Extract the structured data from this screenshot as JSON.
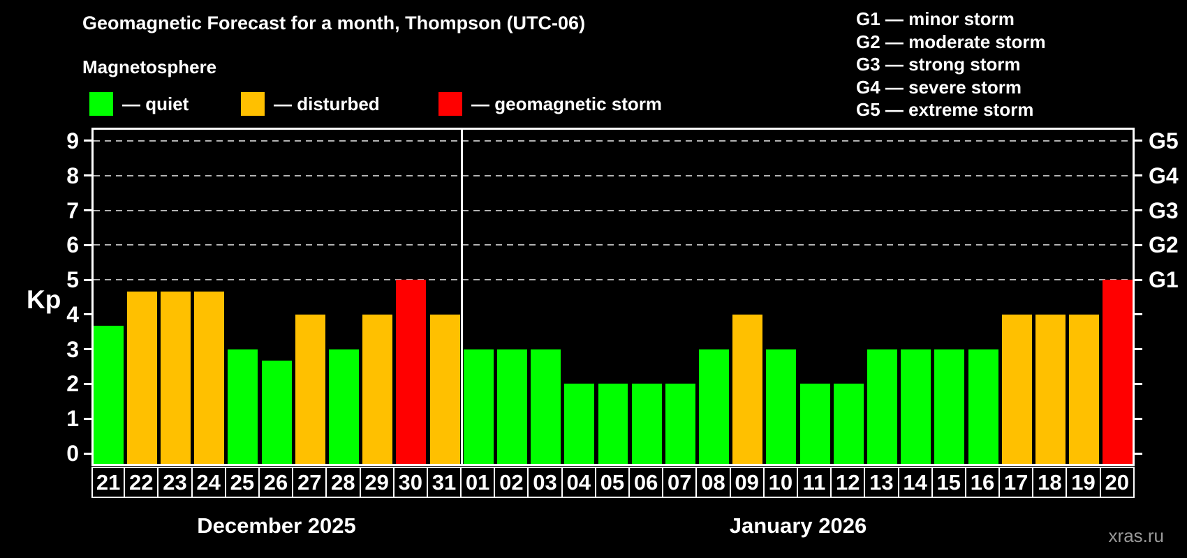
{
  "header": {
    "title": "Geomagnetic Forecast for a month, Thompson (UTC-06)",
    "subtitle": "Magnetosphere"
  },
  "legend": {
    "items": [
      {
        "name": "quiet",
        "label": "— quiet",
        "color": "#00ff00"
      },
      {
        "name": "disturbed",
        "label": "— disturbed",
        "color": "#ffc000"
      },
      {
        "name": "storm",
        "label": "— geomagnetic storm",
        "color": "#ff0000"
      }
    ]
  },
  "storm_legend": {
    "items": [
      {
        "label": "G1 — minor storm"
      },
      {
        "label": "G2 — moderate storm"
      },
      {
        "label": "G3 — strong storm"
      },
      {
        "label": "G4 — severe storm"
      },
      {
        "label": "G5 — extreme storm"
      }
    ]
  },
  "axes": {
    "y_label": "Kp",
    "y_ticks": [
      "0",
      "1",
      "2",
      "3",
      "4",
      "5",
      "6",
      "7",
      "8",
      "9"
    ],
    "g_ticks": [
      {
        "kp": 5,
        "label": "G1"
      },
      {
        "kp": 6,
        "label": "G2"
      },
      {
        "kp": 7,
        "label": "G3"
      },
      {
        "kp": 8,
        "label": "G4"
      },
      {
        "kp": 9,
        "label": "G5"
      }
    ]
  },
  "chart_data": {
    "type": "bar",
    "title": "Geomagnetic Forecast for a month, Thompson (UTC-06)",
    "xlabel": "",
    "ylabel": "Kp",
    "ylim": [
      0,
      9
    ],
    "grid": "dashed horizontal lines at Kp 5-9 (G1-G5)",
    "legend_position": "top-left",
    "categories": [
      "21",
      "22",
      "23",
      "24",
      "25",
      "26",
      "27",
      "28",
      "29",
      "30",
      "31",
      "01",
      "02",
      "03",
      "04",
      "05",
      "06",
      "07",
      "08",
      "09",
      "10",
      "11",
      "12",
      "13",
      "14",
      "15",
      "16",
      "17",
      "18",
      "19",
      "20"
    ],
    "values": [
      3.67,
      4.67,
      4.67,
      4.67,
      3,
      2.67,
      4,
      3,
      4,
      5,
      4,
      3,
      3,
      3,
      2,
      2,
      2,
      2,
      3,
      4,
      3,
      2,
      2,
      3,
      3,
      3,
      3,
      4,
      4,
      4,
      5
    ],
    "statuses": [
      "quiet",
      "disturbed",
      "disturbed",
      "disturbed",
      "quiet",
      "quiet",
      "disturbed",
      "quiet",
      "disturbed",
      "storm",
      "disturbed",
      "quiet",
      "quiet",
      "quiet",
      "quiet",
      "quiet",
      "quiet",
      "quiet",
      "quiet",
      "disturbed",
      "quiet",
      "quiet",
      "quiet",
      "quiet",
      "quiet",
      "quiet",
      "quiet",
      "disturbed",
      "disturbed",
      "disturbed",
      "storm"
    ],
    "months": [
      {
        "label": "December 2025",
        "days": 11
      },
      {
        "label": "January 2026",
        "days": 20
      }
    ]
  },
  "colors": {
    "quiet": "#00ff00",
    "disturbed": "#ffc000",
    "storm": "#ff0000",
    "grid": "#b3b3b3",
    "axis": "#ffffff",
    "background": "#000000",
    "watermark_text": "#9a9a9a"
  },
  "watermark": "xras.ru"
}
